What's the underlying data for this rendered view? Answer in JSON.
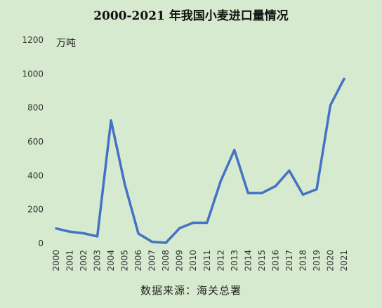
{
  "chart_data": {
    "type": "line",
    "title": "2000-2021 年我国小麦进口量情况",
    "unit_label": "万吨",
    "source_note": "数据来源：海关总署",
    "xlabel": "",
    "ylabel": "",
    "x": [
      "2000",
      "2001",
      "2002",
      "2003",
      "2004",
      "2005",
      "2006",
      "2007",
      "2008",
      "2009",
      "2010",
      "2011",
      "2012",
      "2013",
      "2014",
      "2015",
      "2016",
      "2017",
      "2018",
      "2019",
      "2020",
      "2021"
    ],
    "series": [
      {
        "values": [
          88,
          69,
          60,
          42,
          726,
          350,
          58,
          9,
          4,
          90,
          122,
          122,
          368,
          551,
          297,
          297,
          338,
          430,
          288,
          320,
          815,
          971
        ]
      }
    ],
    "yticks": [
      0,
      200,
      400,
      600,
      800,
      1000,
      1200
    ],
    "ylim": [
      0,
      1200
    ],
    "grid": false,
    "legend": "none",
    "line_color": "#4472C4",
    "background_color": "#D6EAD0"
  }
}
